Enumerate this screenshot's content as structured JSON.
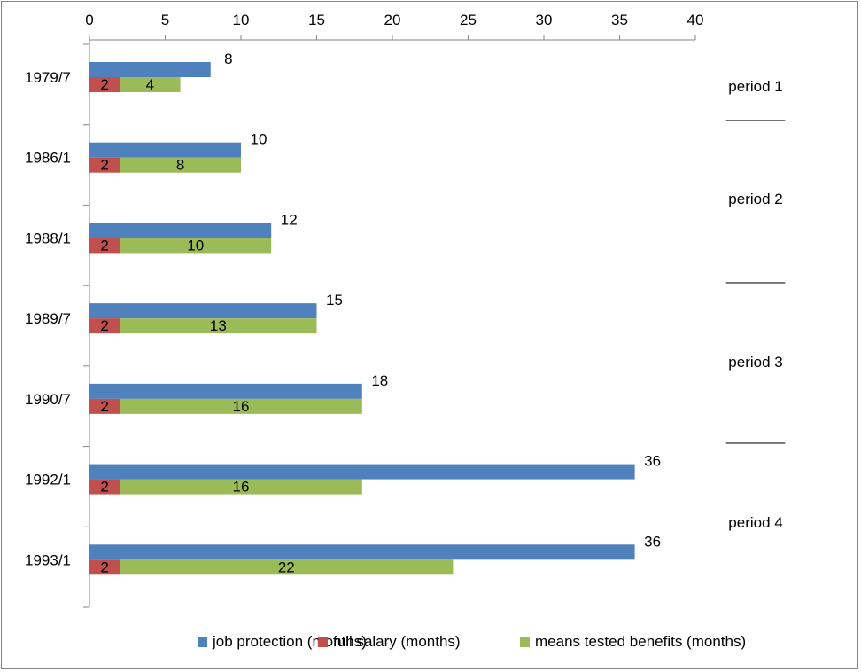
{
  "chart_data": {
    "type": "bar",
    "orientation": "horizontal",
    "title": "",
    "xlabel": "",
    "ylabel": "",
    "xlim": [
      0,
      40
    ],
    "x_ticks": [
      "0",
      "5",
      "10",
      "15",
      "20",
      "25",
      "30",
      "35",
      "40"
    ],
    "x_axis_position": "top",
    "grid": false,
    "legend_position": "bottom",
    "categories": [
      "1979/7",
      "1986/1",
      "1988/1",
      "1989/7",
      "1990/7",
      "1992/1",
      "1993/1"
    ],
    "series": [
      {
        "name": "job protection (months)",
        "color": "#4f81bd",
        "values": [
          8,
          10,
          12,
          15,
          18,
          36,
          36
        ],
        "value_labels": [
          "8",
          "10",
          "12",
          "15",
          "18",
          "36",
          "36"
        ]
      },
      {
        "name": "full salary (months)",
        "color": "#c0504d",
        "values": [
          2,
          2,
          2,
          2,
          2,
          2,
          2
        ],
        "value_labels": [
          "2",
          "2",
          "2",
          "2",
          "2",
          "2",
          "2"
        ]
      },
      {
        "name": "means tested benefits (months)",
        "color": "#9bbb59",
        "values": [
          4,
          8,
          10,
          13,
          16,
          16,
          22
        ],
        "value_labels": [
          "4",
          "8",
          "10",
          "13",
          "16",
          "16",
          "22"
        ]
      }
    ],
    "annotations": [
      "period 1",
      "_______",
      "period 2",
      "_______",
      "period 3",
      "_______",
      "period 4"
    ]
  }
}
